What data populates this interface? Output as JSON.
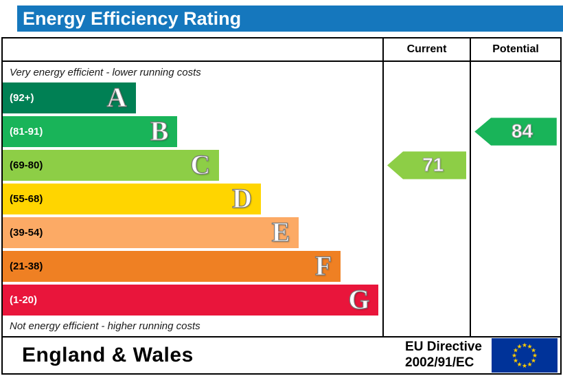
{
  "title": "Energy Efficiency Rating",
  "columns": {
    "current": "Current",
    "potential": "Potential"
  },
  "notes": {
    "top": "Very energy efficient - lower running costs",
    "bottom": "Not energy efficient - higher running costs"
  },
  "footer": {
    "region": "England & Wales",
    "directive_line1": "EU Directive",
    "directive_line2": "2002/91/EC"
  },
  "theme": {
    "title_bg": "#1577bd",
    "title_text": "#ffffff",
    "border": "#000000",
    "eu_flag_bg": "#003399",
    "eu_star": "#ffcc00"
  },
  "chart_data": {
    "type": "bar",
    "title": "Energy Efficiency Rating",
    "bands": [
      {
        "letter": "A",
        "range": "(92+)",
        "min": 92,
        "max": 100,
        "color": "#008054",
        "text_color": "#ffffff",
        "width_pct": 35
      },
      {
        "letter": "B",
        "range": "(81-91)",
        "min": 81,
        "max": 91,
        "color": "#19b459",
        "text_color": "#ffffff",
        "width_pct": 46
      },
      {
        "letter": "C",
        "range": "(69-80)",
        "min": 69,
        "max": 80,
        "color": "#8dce46",
        "text_color": "#000000",
        "width_pct": 57
      },
      {
        "letter": "D",
        "range": "(55-68)",
        "min": 55,
        "max": 68,
        "color": "#ffd500",
        "text_color": "#000000",
        "width_pct": 68
      },
      {
        "letter": "E",
        "range": "(39-54)",
        "min": 39,
        "max": 54,
        "color": "#fcaa65",
        "text_color": "#000000",
        "width_pct": 78
      },
      {
        "letter": "F",
        "range": "(21-38)",
        "min": 21,
        "max": 38,
        "color": "#ef8023",
        "text_color": "#000000",
        "width_pct": 89
      },
      {
        "letter": "G",
        "range": "(1-20)",
        "min": 1,
        "max": 20,
        "color": "#e9153b",
        "text_color": "#ffffff",
        "width_pct": 99
      }
    ],
    "ratings": {
      "current": {
        "value": 71,
        "band": "C",
        "color": "#8dce46"
      },
      "potential": {
        "value": 84,
        "band": "B",
        "color": "#19b459"
      }
    }
  }
}
